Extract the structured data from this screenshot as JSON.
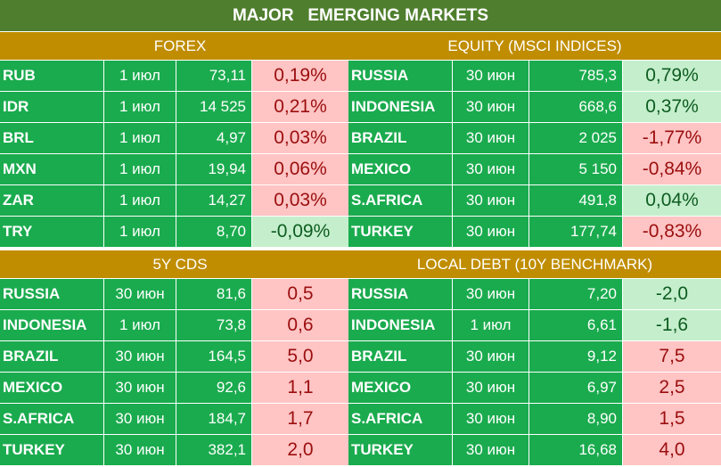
{
  "title": "MAJOR   EMERGING MARKETS",
  "colors": {
    "title_bg": "#4f7f2e",
    "header_bg": "#c08d00",
    "cell_bg": "#1aab4e",
    "negative_bg": "#ffc4c4",
    "negative_text": "#9b0e0e",
    "positive_bg": "#c5efcc",
    "positive_text": "#0e5c21"
  },
  "forex": {
    "header": "FOREX",
    "rows": [
      {
        "name": "RUB",
        "date": "1 июл",
        "value": "73,11",
        "change": "0,19%",
        "tone": "neg"
      },
      {
        "name": "IDR",
        "date": "1 июл",
        "value": "14 525",
        "change": "0,21%",
        "tone": "neg"
      },
      {
        "name": "BRL",
        "date": "1 июл",
        "value": "4,97",
        "change": "0,03%",
        "tone": "neg"
      },
      {
        "name": "MXN",
        "date": "1 июл",
        "value": "19,94",
        "change": "0,06%",
        "tone": "neg"
      },
      {
        "name": "ZAR",
        "date": "1 июл",
        "value": "14,27",
        "change": "0,03%",
        "tone": "neg"
      },
      {
        "name": "TRY",
        "date": "1 июл",
        "value": "8,70",
        "change": "-0,09%",
        "tone": "pos"
      }
    ]
  },
  "equity": {
    "header": "EQUITY (MSCI INDICES)",
    "rows": [
      {
        "name": "RUSSIA",
        "date": "30 июн",
        "value": "785,3",
        "change": "0,79%",
        "tone": "pos"
      },
      {
        "name": "INDONESIA",
        "date": "30 июн",
        "value": "668,6",
        "change": "0,37%",
        "tone": "pos"
      },
      {
        "name": "BRAZIL",
        "date": "30 июн",
        "value": "2 025",
        "change": "-1,77%",
        "tone": "neg"
      },
      {
        "name": "MEXICO",
        "date": "30 июн",
        "value": "5 150",
        "change": "-0,84%",
        "tone": "neg"
      },
      {
        "name": "S.AFRICA",
        "date": "30 июн",
        "value": "491,8",
        "change": "0,04%",
        "tone": "pos"
      },
      {
        "name": "TURKEY",
        "date": "30 июн",
        "value": "177,74",
        "change": "-0,83%",
        "tone": "neg"
      }
    ]
  },
  "cds": {
    "header": "5Y CDS",
    "rows": [
      {
        "name": "RUSSIA",
        "date": "30 июн",
        "value": "81,6",
        "change": "0,5",
        "tone": "neg"
      },
      {
        "name": "INDONESIA",
        "date": "1 июл",
        "value": "73,8",
        "change": "0,6",
        "tone": "neg"
      },
      {
        "name": "BRAZIL",
        "date": "30 июн",
        "value": "164,5",
        "change": "5,0",
        "tone": "neg"
      },
      {
        "name": "MEXICO",
        "date": "30 июн",
        "value": "92,6",
        "change": "1,1",
        "tone": "neg"
      },
      {
        "name": "S.AFRICA",
        "date": "30 июн",
        "value": "184,7",
        "change": "1,7",
        "tone": "neg"
      },
      {
        "name": "TURKEY",
        "date": "30 июн",
        "value": "382,1",
        "change": "2,0",
        "tone": "neg"
      }
    ]
  },
  "debt": {
    "header": "LOCAL DEBT (10Y BENCHMARK)",
    "rows": [
      {
        "name": "RUSSIA",
        "date": "30 июн",
        "value": "7,20",
        "change": "-2,0",
        "tone": "pos"
      },
      {
        "name": "INDONESIA",
        "date": "1 июл",
        "value": "6,61",
        "change": "-1,6",
        "tone": "pos"
      },
      {
        "name": "BRAZIL",
        "date": "30 июн",
        "value": "9,12",
        "change": "7,5",
        "tone": "neg"
      },
      {
        "name": "MEXICO",
        "date": "30 июн",
        "value": "6,97",
        "change": "2,5",
        "tone": "neg"
      },
      {
        "name": "S.AFRICA",
        "date": "30 июн",
        "value": "8,90",
        "change": "1,5",
        "tone": "neg"
      },
      {
        "name": "TURKEY",
        "date": "30 июн",
        "value": "16,68",
        "change": "4,0",
        "tone": "neg"
      }
    ]
  }
}
